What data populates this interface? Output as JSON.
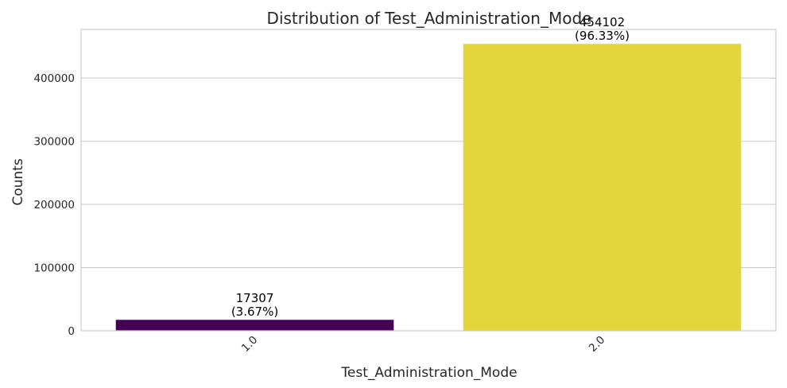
{
  "chart_data": {
    "type": "bar",
    "title": "Distribution of Test_Administration_Mode",
    "xlabel": "Test_Administration_Mode",
    "ylabel": "Counts",
    "categories": [
      "1.0",
      "2.0"
    ],
    "values": [
      17307,
      454102
    ],
    "bar_labels": [
      [
        "17307",
        "(3.67%)"
      ],
      [
        "454102",
        "(96.33%)"
      ]
    ],
    "bar_colors": [
      "#440154",
      "#e3d63c"
    ],
    "ylim": [
      0,
      477000
    ],
    "yticks": [
      0,
      100000,
      200000,
      300000,
      400000
    ],
    "grid": true,
    "legend": false
  }
}
